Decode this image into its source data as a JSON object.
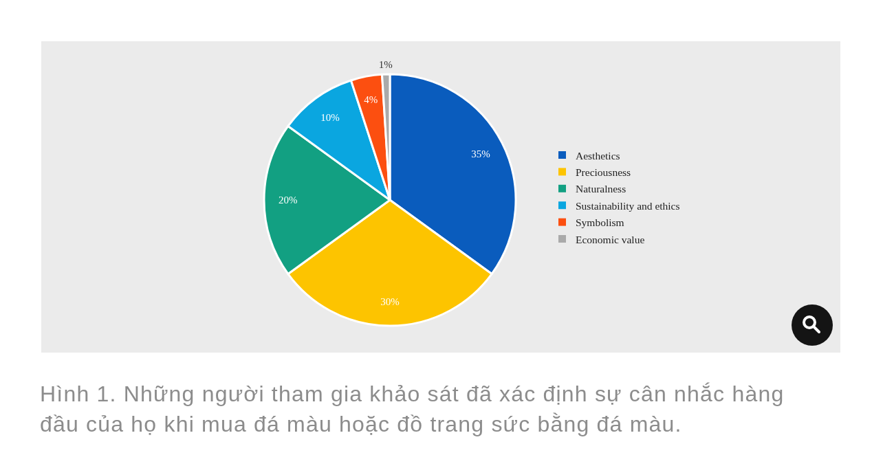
{
  "chart_data": {
    "type": "pie",
    "categories": [
      "Aesthetics",
      "Preciousness",
      "Naturalness",
      "Sustainability and ethics",
      "Symbolism",
      "Economic value"
    ],
    "values": [
      35,
      30,
      20,
      10,
      4,
      1
    ],
    "colors": [
      "#0a5cbd",
      "#fdc400",
      "#12a082",
      "#0aa6e0",
      "#fc4f10",
      "#aaaaaa"
    ],
    "value_labels": [
      "35%",
      "30%",
      "20%",
      "10%",
      "4%",
      "1%"
    ],
    "legend": "right",
    "annotations": [
      "Hình 1. Những người tham gia khảo sát đã xác định sự cân nhắc hàng đầu của họ khi mua đá màu hoặc đồ trang sức bằng đá màu."
    ]
  }
}
